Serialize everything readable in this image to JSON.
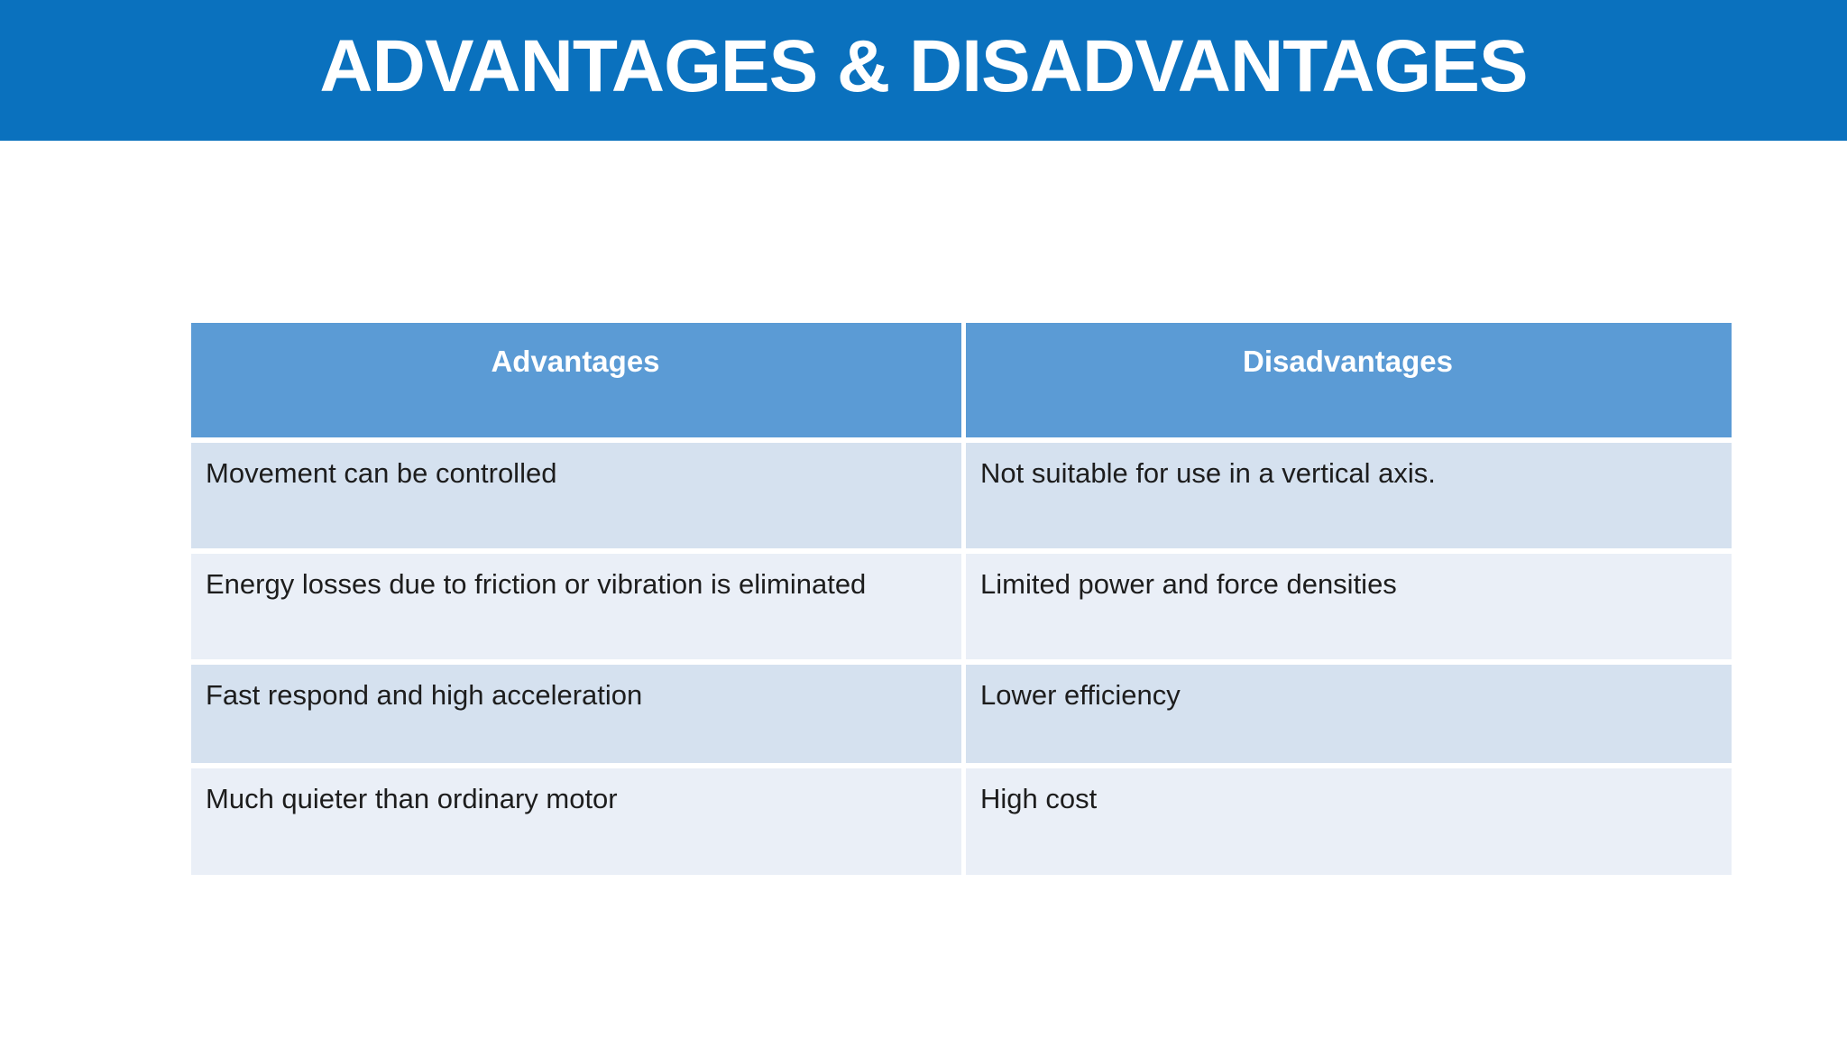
{
  "slide": {
    "title": "ADVANTAGES & DISADVANTAGES"
  },
  "colors": {
    "banner_blue": "#0a71be",
    "table_header_blue": "#5b9bd5",
    "band_dark": "#d5e1ef",
    "band_light": "#eaeff7",
    "text": "#1d1d1d",
    "header_text": "#ffffff"
  },
  "table": {
    "columns": [
      "Advantages",
      "Disadvantages"
    ],
    "rows": [
      [
        "Movement can be controlled",
        "Not suitable for use in a vertical axis."
      ],
      [
        "Energy losses due to friction or vibration is eliminated",
        "Limited power and force densities"
      ],
      [
        "Fast respond and high acceleration",
        "Lower efficiency"
      ],
      [
        "Much quieter than ordinary motor",
        "High cost"
      ]
    ]
  }
}
